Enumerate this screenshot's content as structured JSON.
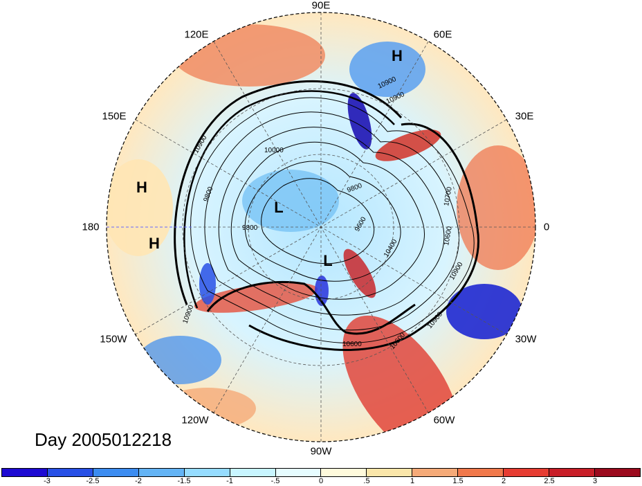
{
  "map": {
    "projection": "north polar stereographic",
    "longitude_labels": [
      "90E",
      "120E",
      "60E",
      "150E",
      "30E",
      "180",
      "0",
      "150W",
      "30W",
      "120W",
      "60W",
      "90W"
    ],
    "pressure_centers": [
      {
        "label": "H",
        "location": "Asia, near 60E"
      },
      {
        "label": "H",
        "location": "North Pacific, near 150E"
      },
      {
        "label": "H",
        "location": "North Pacific, near 180"
      },
      {
        "label": "L",
        "location": "near pole, Siberian side"
      },
      {
        "label": "L",
        "location": "Canadian Arctic"
      }
    ],
    "contour_labels": [
      "10900",
      "10900",
      "10000",
      "9800",
      "9800",
      "9800",
      "9600",
      "10400",
      "10600",
      "10600",
      "10600",
      "10900",
      "10900",
      "10900",
      "10900",
      "10700"
    ],
    "colors": {
      "negative_strong": "#0a0acd",
      "negative_mid": "#5aa6f0",
      "negative_weak": "#c8f0ff",
      "positive_weak": "#fff5c8",
      "positive_mid": "#f5a064",
      "positive_strong": "#a0001e"
    }
  },
  "date_label": "Day 2005012218",
  "colorbar": {
    "colors": [
      "#1e0ad2",
      "#2850e6",
      "#3c8cf0",
      "#64b4f5",
      "#96dcff",
      "#c8f5ff",
      "#e6fcff",
      "#fffadc",
      "#fae6aa",
      "#f5aa78",
      "#f0784b",
      "#e63c32",
      "#c81e28",
      "#9b0a1e"
    ],
    "tick_labels": [
      "-3",
      "-2.5",
      "-2",
      "-1.5",
      "-1",
      "-.5",
      "0",
      ".5",
      "1",
      "1.5",
      "2",
      "2.5",
      "3"
    ]
  }
}
